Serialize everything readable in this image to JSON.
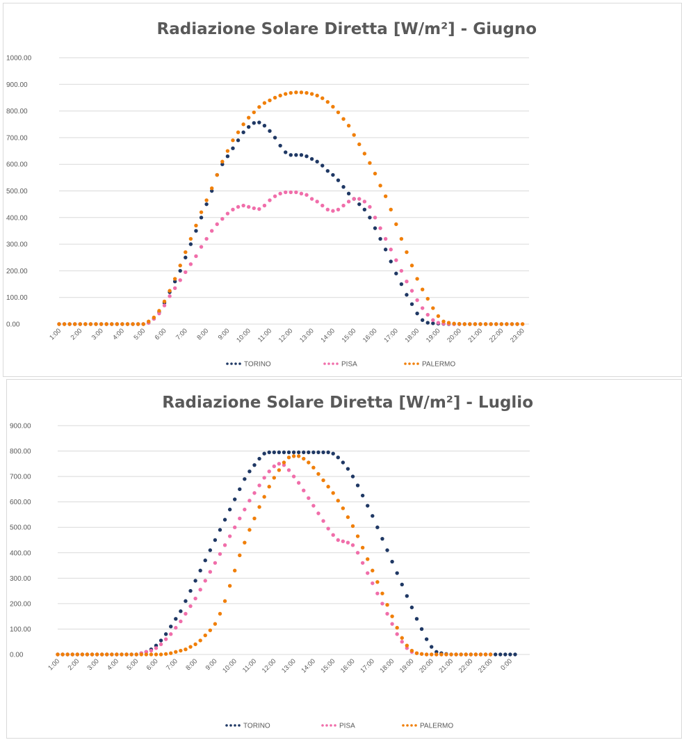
{
  "colors": {
    "TORINO": "#1f3864",
    "PISA": "#f06eaa",
    "PALERMO": "#f07f09",
    "grid": "#d9d9d9",
    "text": "#595959"
  },
  "chart_data": [
    {
      "type": "scatter",
      "title": "Radiazione Solare Diretta [W/m²] - Giugno",
      "xlabel": "",
      "ylabel": "",
      "ylim": [
        0,
        1000
      ],
      "yticks": [
        "0.00",
        "100.00",
        "200.00",
        "300.00",
        "400.00",
        "500.00",
        "600.00",
        "700.00",
        "800.00",
        "900.00",
        "1000.00"
      ],
      "xticks": [
        "1:00",
        "2:00",
        "3:00",
        "4:00",
        "5:00",
        "6:00",
        "7:00",
        "8:00",
        "9:00",
        "10:00",
        "11:00",
        "12:00",
        "13:00",
        "14:00",
        "15:00",
        "16:00",
        "17:00",
        "18:00",
        "19:00",
        "20:00",
        "21:00",
        "22:00",
        "23:00"
      ],
      "x_start": 1,
      "x_step": 0.25,
      "grid": true,
      "legend": "bottom",
      "series": [
        {
          "name": "TORINO",
          "values": [
            0,
            0,
            0,
            0,
            0,
            0,
            0,
            0,
            0,
            0,
            0,
            0,
            0,
            0,
            0,
            0,
            0,
            5,
            20,
            45,
            80,
            120,
            160,
            200,
            250,
            300,
            350,
            400,
            450,
            500,
            560,
            600,
            630,
            660,
            690,
            720,
            740,
            755,
            757,
            745,
            725,
            700,
            670,
            645,
            635,
            635,
            635,
            630,
            620,
            610,
            595,
            575,
            560,
            540,
            515,
            490,
            470,
            450,
            430,
            400,
            360,
            320,
            280,
            235,
            190,
            150,
            110,
            75,
            40,
            15,
            5,
            3,
            2,
            1,
            0,
            0,
            0,
            0,
            0,
            0,
            0,
            0,
            0,
            0,
            0,
            0,
            0,
            0
          ]
        },
        {
          "name": "PISA",
          "values": [
            0,
            0,
            0,
            0,
            0,
            0,
            0,
            0,
            0,
            0,
            0,
            0,
            0,
            0,
            0,
            0,
            0,
            5,
            20,
            40,
            70,
            105,
            135,
            165,
            195,
            225,
            255,
            290,
            320,
            350,
            375,
            395,
            415,
            430,
            440,
            445,
            440,
            435,
            432,
            445,
            465,
            480,
            490,
            495,
            495,
            495,
            490,
            485,
            470,
            460,
            445,
            430,
            425,
            430,
            445,
            460,
            470,
            470,
            460,
            440,
            400,
            360,
            320,
            280,
            240,
            200,
            160,
            125,
            90,
            60,
            35,
            15,
            5,
            2,
            1,
            0,
            0,
            0,
            0,
            0,
            0,
            0,
            0,
            0,
            0,
            0,
            0,
            0,
            0
          ]
        },
        {
          "name": "PALERMO",
          "values": [
            0,
            0,
            0,
            0,
            0,
            0,
            0,
            0,
            0,
            0,
            0,
            0,
            0,
            0,
            0,
            0,
            0,
            10,
            25,
            50,
            85,
            125,
            170,
            220,
            270,
            320,
            370,
            420,
            465,
            510,
            560,
            610,
            650,
            690,
            720,
            750,
            775,
            795,
            815,
            830,
            840,
            850,
            858,
            864,
            868,
            870,
            870,
            868,
            864,
            858,
            848,
            834,
            816,
            795,
            770,
            745,
            710,
            675,
            640,
            605,
            565,
            520,
            480,
            430,
            375,
            320,
            270,
            220,
            170,
            130,
            95,
            60,
            30,
            10,
            5,
            2,
            1,
            0,
            0,
            0,
            0,
            0,
            0,
            0,
            0,
            0,
            0,
            0,
            0
          ]
        }
      ]
    },
    {
      "type": "scatter",
      "title": "Radiazione Solare Diretta [W/m²] - Luglio",
      "xlabel": "",
      "ylabel": "",
      "ylim": [
        0,
        900
      ],
      "yticks": [
        "0.00",
        "100.00",
        "200.00",
        "300.00",
        "400.00",
        "500.00",
        "600.00",
        "700.00",
        "800.00",
        "900.00"
      ],
      "xticks": [
        "1:00",
        "2:00",
        "3:00",
        "4:00",
        "5:00",
        "6:00",
        "7:00",
        "8:00",
        "9:00",
        "10:00",
        "11:00",
        "12:00",
        "13:00",
        "14:00",
        "15:00",
        "16:00",
        "17:00",
        "18:00",
        "19:00",
        "20:00",
        "21:00",
        "22:00",
        "23:00",
        "0:00"
      ],
      "x_start": 1,
      "x_step": 0.25,
      "grid": true,
      "legend": "bottom",
      "series": [
        {
          "name": "TORINO",
          "values": [
            0,
            0,
            0,
            0,
            0,
            0,
            0,
            0,
            0,
            0,
            0,
            0,
            0,
            0,
            0,
            0,
            0,
            5,
            10,
            20,
            35,
            55,
            80,
            110,
            140,
            170,
            210,
            250,
            290,
            330,
            370,
            410,
            450,
            490,
            530,
            570,
            610,
            650,
            690,
            720,
            745,
            770,
            790,
            795,
            795,
            795,
            795,
            795,
            795,
            795,
            795,
            795,
            795,
            795,
            795,
            795,
            790,
            775,
            755,
            730,
            700,
            665,
            625,
            585,
            545,
            500,
            455,
            410,
            365,
            320,
            275,
            230,
            185,
            140,
            100,
            60,
            30,
            10,
            5,
            2,
            0,
            0,
            0,
            0,
            0,
            0,
            0,
            0,
            0,
            0,
            0,
            0,
            0,
            0
          ]
        },
        {
          "name": "PISA",
          "values": [
            0,
            0,
            0,
            0,
            0,
            0,
            0,
            0,
            0,
            0,
            0,
            0,
            0,
            0,
            0,
            0,
            0,
            5,
            10,
            15,
            25,
            40,
            60,
            80,
            105,
            130,
            160,
            190,
            220,
            255,
            290,
            325,
            360,
            395,
            430,
            465,
            500,
            535,
            570,
            605,
            635,
            665,
            695,
            720,
            740,
            750,
            745,
            725,
            700,
            675,
            645,
            615,
            585,
            555,
            525,
            495,
            470,
            450,
            445,
            440,
            430,
            400,
            360,
            320,
            280,
            240,
            200,
            160,
            120,
            80,
            50,
            25,
            10,
            5,
            2,
            0,
            0,
            0,
            0,
            0,
            0,
            0,
            0,
            0,
            0,
            0,
            0,
            0,
            0
          ]
        },
        {
          "name": "PALERMO",
          "values": [
            0,
            0,
            0,
            0,
            0,
            0,
            0,
            0,
            0,
            0,
            0,
            0,
            0,
            0,
            0,
            0,
            0,
            0,
            0,
            0,
            0,
            0,
            2,
            5,
            10,
            15,
            20,
            30,
            40,
            55,
            75,
            95,
            120,
            160,
            210,
            270,
            330,
            390,
            440,
            490,
            535,
            580,
            620,
            660,
            695,
            725,
            755,
            775,
            780,
            780,
            770,
            755,
            735,
            710,
            685,
            660,
            635,
            605,
            575,
            540,
            505,
            465,
            420,
            375,
            330,
            285,
            240,
            195,
            150,
            105,
            65,
            35,
            15,
            5,
            2,
            0,
            0,
            0,
            0,
            0,
            0,
            0,
            0,
            0,
            0,
            0,
            0,
            0,
            0
          ]
        }
      ]
    }
  ]
}
